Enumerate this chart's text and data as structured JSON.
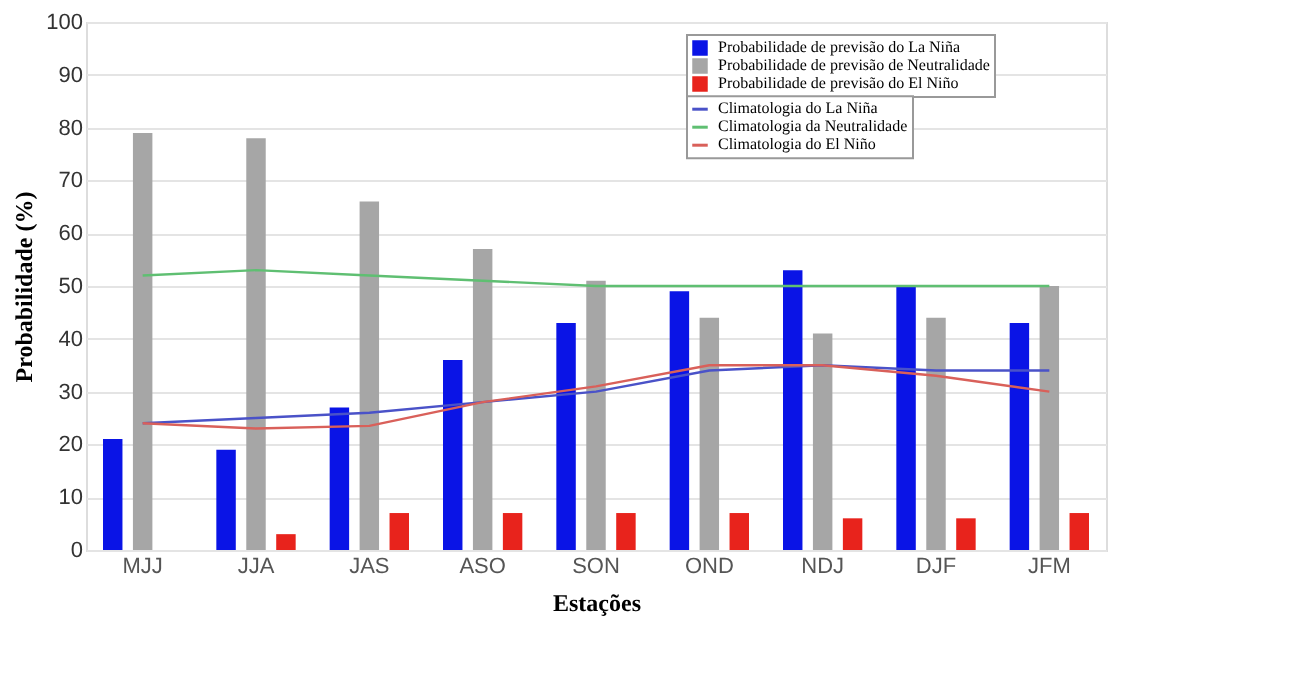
{
  "chart_data": {
    "type": "bar",
    "xlabel": "Estações",
    "ylabel": "Probabilidade (%)",
    "categories": [
      "MJJ",
      "JJA",
      "JAS",
      "ASO",
      "SON",
      "OND",
      "NDJ",
      "DJF",
      "JFM"
    ],
    "series": [
      {
        "name": "Probabilidade de previsão do La Niña",
        "color": "#0a14e6",
        "values": [
          21,
          19,
          27,
          36,
          43,
          49,
          53,
          50,
          43
        ]
      },
      {
        "name": "Probabilidade de previsão de Neutralidade",
        "color": "#a6a6a6",
        "values": [
          79,
          78,
          66,
          57,
          51,
          44,
          41,
          44,
          50
        ]
      },
      {
        "name": "Probabilidade de previsão do El Niño",
        "color": "#e8231c",
        "values": [
          null,
          3,
          7,
          7,
          7,
          7,
          6,
          6,
          7
        ]
      },
      {
        "name": "Climatologia do La Niña",
        "type": "line",
        "color": "#4a52c8",
        "values": [
          24,
          25,
          26,
          28,
          30,
          34,
          35,
          34,
          34
        ]
      },
      {
        "name": "Climatologia da Neutralidade",
        "type": "line",
        "color": "#5fbf72",
        "values": [
          52,
          53,
          52,
          51,
          50,
          50,
          50,
          50,
          50
        ]
      },
      {
        "name": "Climatologia do El Niño",
        "type": "line",
        "color": "#d9605a",
        "values": [
          24,
          23,
          23.5,
          28,
          31,
          35,
          35,
          33,
          30
        ]
      }
    ],
    "ylim": [
      0,
      100
    ],
    "yticks": [
      0,
      10,
      20,
      30,
      40,
      50,
      60,
      70,
      80,
      90,
      100
    ],
    "grid": "y",
    "legend": "top right",
    "marker": "none",
    "line_style": "solid"
  }
}
